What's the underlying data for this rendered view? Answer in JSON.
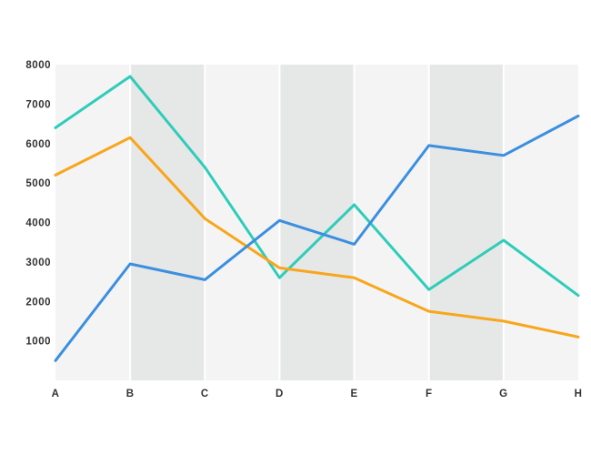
{
  "chart_data": {
    "type": "line",
    "categories": [
      "A",
      "B",
      "C",
      "D",
      "E",
      "F",
      "G",
      "H"
    ],
    "ylim": [
      0,
      8000
    ],
    "yticks": [
      1000,
      2000,
      3000,
      4000,
      5000,
      6000,
      7000,
      8000
    ],
    "ytick_labels": [
      "1000",
      "2000",
      "3000",
      "4000",
      "5000",
      "6000",
      "7000",
      "8000"
    ],
    "grid": false,
    "legend": "none",
    "background": {
      "band_light": "#f4f4f4",
      "band_dark": "#e6e7e7",
      "divider": "#ffffff"
    },
    "series": [
      {
        "color": "#2ecdb9",
        "values": [
          6400,
          7700,
          5400,
          2600,
          4450,
          2300,
          3550,
          2150
        ]
      },
      {
        "color": "#f8a61b",
        "values": [
          5200,
          6150,
          4100,
          2850,
          2600,
          1750,
          1500,
          1100
        ]
      },
      {
        "color": "#3b8fdf",
        "values": [
          500,
          2950,
          2550,
          4050,
          3450,
          5950,
          5700,
          6700
        ]
      }
    ]
  }
}
